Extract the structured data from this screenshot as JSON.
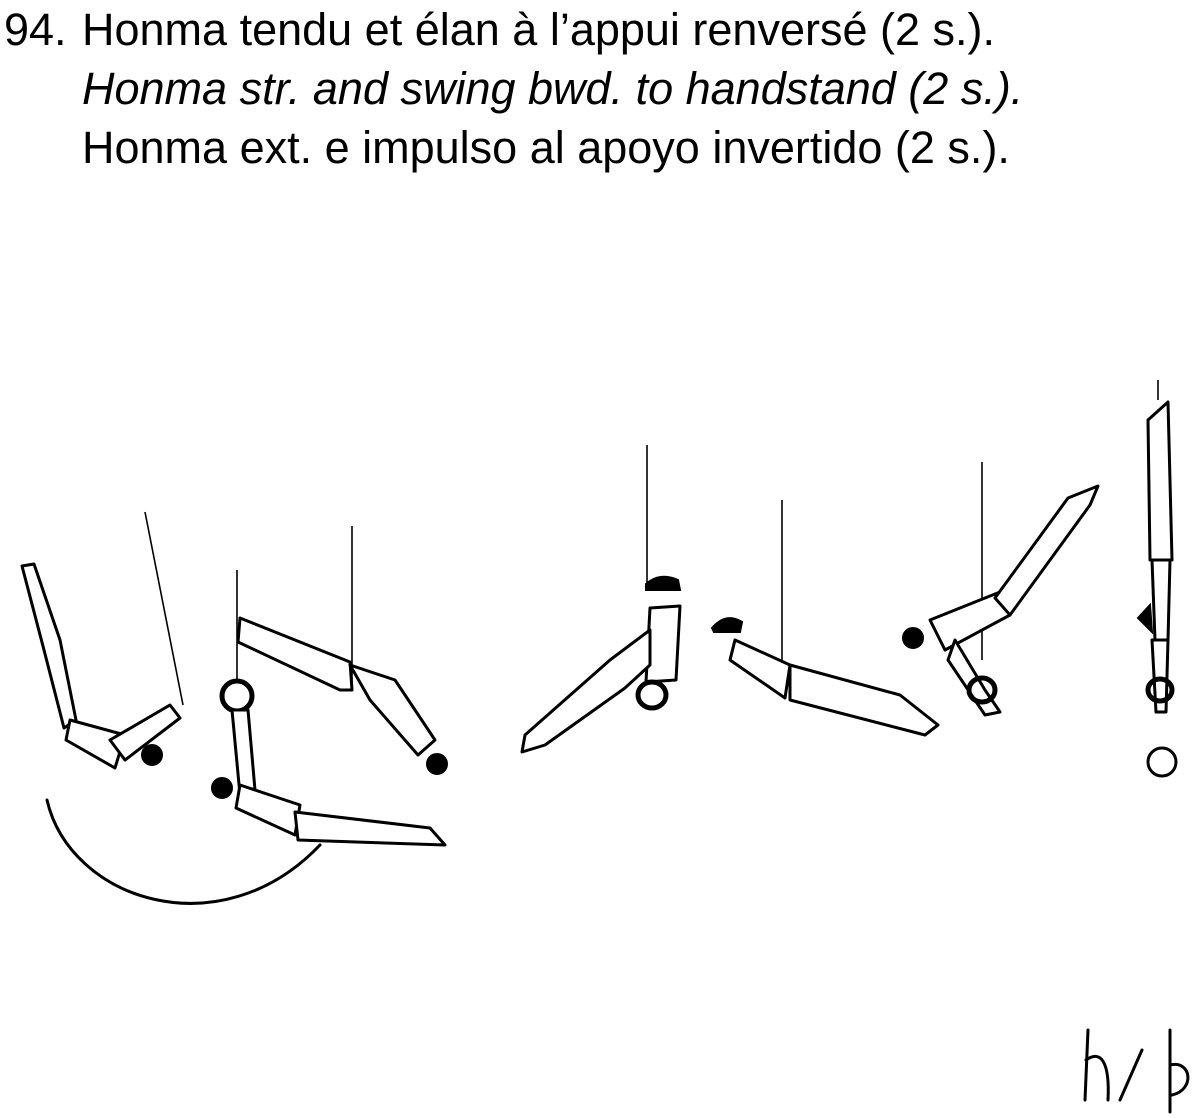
{
  "element_number": "94.",
  "names": {
    "fr": "Honma tendu et élan à l’appui renversé (2 s.).",
    "en": "Honma str. and swing bwd. to handstand (2 s.).",
    "es": "Honma ext. e impulso al apoyo invertido (2 s.)."
  },
  "figure": {
    "description_icon": "gymnast-rings-sequence-icon",
    "stages": 7
  },
  "signature_text": "h/p"
}
